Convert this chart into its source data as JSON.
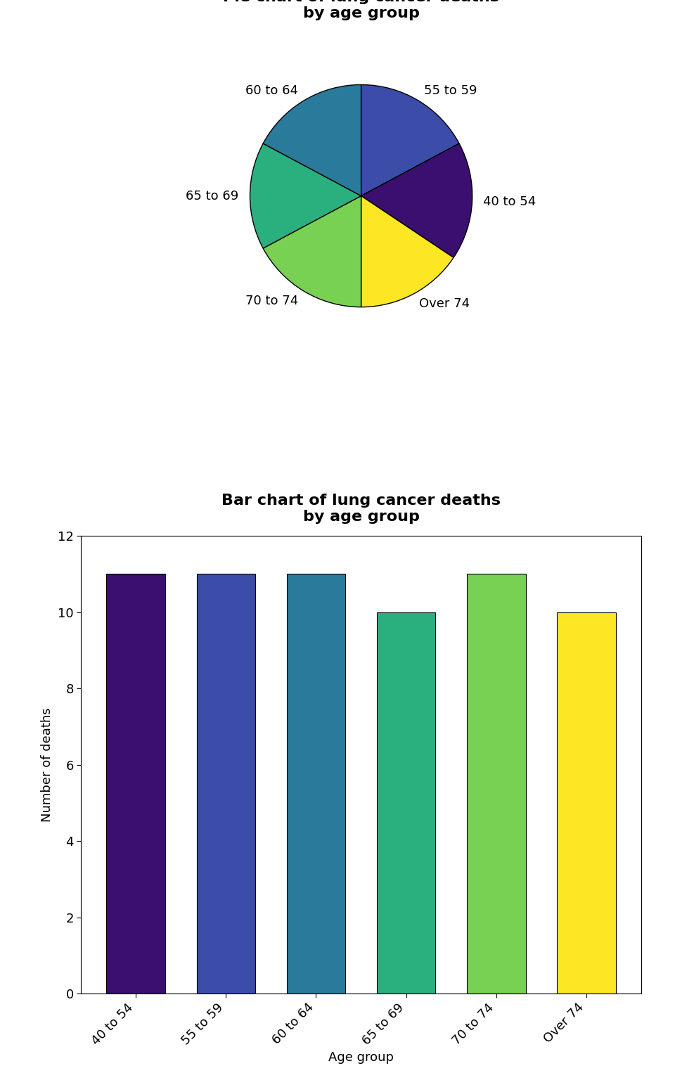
{
  "pie_title": "Pie chart of lung cancer deaths\nby age group",
  "bar_title": "Bar chart of lung cancer deaths\nby age group",
  "categories": [
    "40 to 54",
    "55 to 59",
    "60 to 64",
    "65 to 69",
    "70 to 74",
    "Over 74"
  ],
  "values": [
    11,
    11,
    11,
    10,
    11,
    10
  ],
  "pie_colors_ordered": [
    "#3b4da8",
    "#3b0f70",
    "#fde724",
    "#78d152",
    "#2ab07f",
    "#2a7b9b"
  ],
  "pie_labels_ordered": [
    "55 to 59",
    "40 to 54",
    "Over 74",
    "70 to 74",
    "65 to 69",
    "60 to 64"
  ],
  "bar_colors": [
    "#3b0f70",
    "#3b4da8",
    "#2a7b9b",
    "#2ab07f",
    "#78d152",
    "#fde724"
  ],
  "ylabel": "Number of deaths",
  "xlabel": "Age group",
  "ylim": [
    0,
    12
  ],
  "yticks": [
    0,
    2,
    4,
    6,
    8,
    10,
    12
  ],
  "background_color": "#ffffff",
  "title_fontsize": 16,
  "label_fontsize": 13,
  "tick_fontsize": 13
}
